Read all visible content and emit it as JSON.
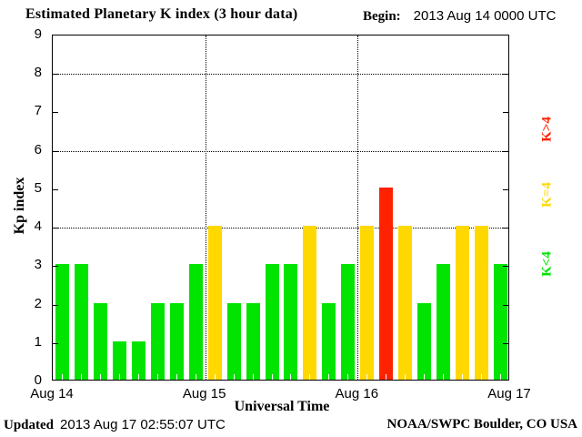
{
  "header": {
    "title": "Estimated Planetary K index (3 hour data)",
    "begin_label": "Begin:",
    "begin_value": "2013 Aug 14 0000 UTC"
  },
  "y_axis": {
    "title": "Kp index"
  },
  "x_axis": {
    "title": "Universal Time"
  },
  "legend": [
    {
      "label": "K>4",
      "color": "#FF2200"
    },
    {
      "label": "K=4",
      "color": "#FFD800"
    },
    {
      "label": "K<4",
      "color": "#00E400"
    }
  ],
  "footer": {
    "updated_label": "Updated",
    "updated_value": "2013 Aug 17 02:55:07 UTC",
    "source": "NOAA/SWPC Boulder, CO USA"
  },
  "chart_data": {
    "type": "bar",
    "title": "Estimated Planetary K index (3 hour data)",
    "begin": "2013 Aug 14 0000 UTC",
    "xlabel": "Universal Time",
    "ylabel": "Kp index",
    "ylim": [
      0,
      9
    ],
    "yticks": [
      0,
      1,
      2,
      3,
      4,
      5,
      6,
      7,
      8,
      9
    ],
    "gridlines_y": [
      4,
      6,
      8
    ],
    "grid": true,
    "legend_position": "right",
    "interval_hours": 3,
    "x_day_labels": [
      "Aug 14",
      "Aug 15",
      "Aug 16",
      "Aug 17"
    ],
    "values": [
      3,
      3,
      2,
      1,
      1,
      2,
      2,
      3,
      4,
      2,
      2,
      3,
      3,
      4,
      2,
      3,
      4,
      5,
      4,
      2,
      3,
      4,
      4,
      3
    ],
    "color_rule": {
      "lt4": "#00E400",
      "eq4": "#FFD800",
      "gt4": "#FF2200"
    }
  }
}
